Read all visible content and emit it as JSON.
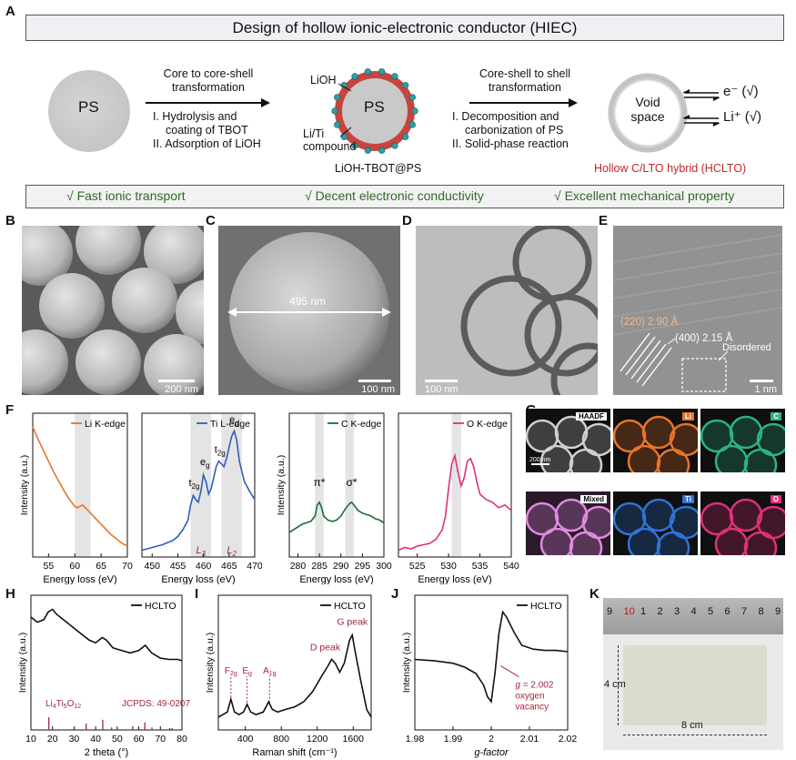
{
  "panelA": {
    "label": "A",
    "title": "Design of hollow ionic-electronic conductor (HIEC)",
    "ps_label": "PS",
    "step1_title": [
      "Core to core-shell",
      "transformation"
    ],
    "step1_items": [
      "I.  Hydrolysis and",
      "coating of TBOT",
      "II. Adsorption of LiOH"
    ],
    "lioh_label": "LiOH",
    "liti_label": [
      "Li/Ti",
      "compound"
    ],
    "core_label": "PS",
    "intermediate_name": "LiOH-TBOT@PS",
    "step2_title": [
      "Core-shell to shell",
      "transformation"
    ],
    "step2_items": [
      "I.  Decomposition and",
      "carbonization of PS",
      "II. Solid-phase reaction"
    ],
    "void_label": [
      "Void",
      "space"
    ],
    "electron_label": "e⁻ (√)",
    "li_label": "Li⁺ (√)",
    "product_name": "Hollow C/LTO hybrid (HCLTO)",
    "features": [
      "√ Fast ionic transport",
      "√ Decent electronic conductivity",
      "√ Excellent mechanical property"
    ],
    "colors": {
      "shell": "#c8443e",
      "dots": "#2aa0a8",
      "product_text": "#c0262d",
      "features_text": "#2f6b26"
    }
  },
  "panelB": {
    "label": "B",
    "scale": "200 nm"
  },
  "panelC": {
    "label": "C",
    "scale": "100 nm",
    "diameter": "495 nm"
  },
  "panelD": {
    "label": "D",
    "scale": "100 nm"
  },
  "panelE": {
    "label": "E",
    "scale": "1 nm",
    "d220": "(220)  2.90 Å",
    "d400": "(400)  2.15 Å",
    "disordered": "Disordered"
  },
  "panelF": {
    "label": "F"
  },
  "panelG": {
    "label": "G",
    "scale": "200 nm",
    "maps": [
      {
        "name": "HAADF",
        "color": "#d0d0d0"
      },
      {
        "name": "Li",
        "color": "#e8742a"
      },
      {
        "name": "C",
        "color": "#2bb583"
      },
      {
        "name": "Mixed",
        "color": "#e08ae0"
      },
      {
        "name": "Ti",
        "color": "#2f74d6"
      },
      {
        "name": "O",
        "color": "#e0307a"
      }
    ]
  },
  "panelH": {
    "label": "H"
  },
  "panelI": {
    "label": "I"
  },
  "panelJ": {
    "label": "J"
  },
  "panelK": {
    "label": "K",
    "ruler_digits": [
      "9",
      "10",
      "1",
      "2",
      "3",
      "4",
      "5",
      "6",
      "7",
      "8",
      "9"
    ],
    "height_label": "4 cm",
    "width_label": "8 cm"
  },
  "chart_data": [
    {
      "id": "F1",
      "type": "line",
      "legend": "Li K-edge",
      "color": "#e8742a",
      "xlabel": "Energy loss (eV)",
      "ylabel": "Intensity (a.u.)",
      "xlim": [
        52,
        70
      ],
      "xticks": [
        55,
        60,
        65,
        70
      ],
      "highlight": [
        60,
        63
      ],
      "x": [
        52,
        53,
        54,
        55,
        56,
        57,
        58,
        59,
        60,
        60.5,
        61,
        61.5,
        62,
        63,
        64,
        65,
        66,
        67,
        68,
        69,
        70
      ],
      "y": [
        0.95,
        0.86,
        0.78,
        0.7,
        0.62,
        0.55,
        0.48,
        0.42,
        0.37,
        0.36,
        0.37,
        0.38,
        0.36,
        0.32,
        0.28,
        0.24,
        0.2,
        0.16,
        0.13,
        0.1,
        0.08
      ]
    },
    {
      "id": "F2",
      "type": "line",
      "legend": "Ti L-edge",
      "color": "#2f5fb8",
      "xlabel": "Energy loss (eV)",
      "ylabel": "",
      "xlim": [
        448,
        470
      ],
      "xticks": [
        450,
        455,
        460,
        465,
        470
      ],
      "highlight_bands": [
        [
          457.5,
          461.5
        ],
        [
          463.5,
          467.5
        ]
      ],
      "x": [
        448,
        450,
        452,
        454,
        455,
        456,
        457,
        457.5,
        458,
        458.5,
        459,
        459.5,
        460,
        460.5,
        461,
        461.5,
        462,
        462.5,
        463,
        463.5,
        464,
        464.5,
        465,
        465.5,
        466,
        466.5,
        467,
        468,
        469,
        470
      ],
      "y": [
        0.05,
        0.07,
        0.09,
        0.12,
        0.15,
        0.2,
        0.27,
        0.38,
        0.45,
        0.42,
        0.4,
        0.48,
        0.6,
        0.55,
        0.46,
        0.5,
        0.58,
        0.66,
        0.7,
        0.68,
        0.66,
        0.72,
        0.8,
        0.88,
        0.92,
        0.85,
        0.7,
        0.55,
        0.48,
        0.42
      ],
      "peak_labels": [
        {
          "text": "t2g",
          "x": 458.2,
          "y": 0.52
        },
        {
          "text": "eg",
          "x": 460.3,
          "y": 0.67
        },
        {
          "text": "t2g",
          "x": 463.2,
          "y": 0.76
        },
        {
          "text": "eg",
          "x": 466.0,
          "y": 0.98
        }
      ],
      "edge_labels": [
        {
          "text": "L3",
          "x": 459.5
        },
        {
          "text": "L2",
          "x": 465.5
        }
      ]
    },
    {
      "id": "F3",
      "type": "line",
      "legend": "C K-edge",
      "color": "#1f6b3a",
      "xlabel": "Energy loss (eV)",
      "ylabel": "Intensity (a.u.)",
      "xlim": [
        278,
        300
      ],
      "xticks": [
        280,
        285,
        290,
        295,
        300
      ],
      "highlight_bands": [
        [
          284,
          286
        ],
        [
          291,
          293
        ]
      ],
      "x": [
        278,
        279,
        280,
        281,
        282,
        283,
        284,
        284.5,
        285,
        285.5,
        286,
        287,
        288,
        289,
        290,
        291,
        292,
        292.5,
        293,
        294,
        295,
        296,
        297,
        298,
        299,
        300
      ],
      "y": [
        0.18,
        0.2,
        0.22,
        0.24,
        0.25,
        0.26,
        0.3,
        0.38,
        0.4,
        0.36,
        0.3,
        0.27,
        0.26,
        0.27,
        0.3,
        0.35,
        0.39,
        0.4,
        0.38,
        0.34,
        0.32,
        0.31,
        0.3,
        0.28,
        0.27,
        0.25
      ],
      "peak_labels": [
        {
          "text": "π*",
          "x": 285,
          "y": 0.52
        },
        {
          "text": "σ*",
          "x": 292.5,
          "y": 0.52
        }
      ]
    },
    {
      "id": "F4",
      "type": "line",
      "legend": "O K-edge",
      "color": "#e0307a",
      "xlabel": "Energy loss (eV)",
      "ylabel": "",
      "xlim": [
        522,
        540
      ],
      "xticks": [
        525,
        530,
        535,
        540
      ],
      "highlight_bands": [
        [
          530.5,
          532
        ]
      ],
      "x": [
        522,
        523,
        524,
        525,
        526,
        527,
        528,
        529,
        529.5,
        530,
        530.5,
        531,
        531.5,
        532,
        532.5,
        533,
        533.5,
        534,
        534.5,
        535,
        536,
        537,
        538,
        539,
        540
      ],
      "y": [
        0.05,
        0.07,
        0.06,
        0.08,
        0.09,
        0.1,
        0.13,
        0.2,
        0.3,
        0.5,
        0.68,
        0.74,
        0.62,
        0.52,
        0.58,
        0.7,
        0.72,
        0.66,
        0.55,
        0.46,
        0.42,
        0.4,
        0.36,
        0.38,
        0.34
      ]
    },
    {
      "id": "H",
      "type": "line",
      "legend": "HCLTO",
      "color": "#111111",
      "xlabel": "2 theta (°)",
      "ylabel": "Intensity (a.u.)",
      "xlim": [
        10,
        80
      ],
      "xticks": [
        10,
        20,
        30,
        40,
        50,
        60,
        70,
        80
      ],
      "x": [
        10,
        13,
        16,
        18,
        20,
        22,
        25,
        28,
        31,
        34,
        37,
        40,
        43,
        45,
        48,
        52,
        56,
        60,
        63,
        66,
        70,
        74,
        78,
        80
      ],
      "y": [
        0.88,
        0.84,
        0.86,
        0.92,
        0.94,
        0.9,
        0.86,
        0.82,
        0.78,
        0.74,
        0.7,
        0.68,
        0.72,
        0.7,
        0.64,
        0.62,
        0.6,
        0.62,
        0.66,
        0.6,
        0.56,
        0.55,
        0.55,
        0.54
      ],
      "reference_label": "Li4Ti5O12",
      "reference_card": "JCPDS: 49-0207",
      "reference_peaks": [
        {
          "x": 18.3,
          "h": 1.0
        },
        {
          "x": 35.6,
          "h": 0.5
        },
        {
          "x": 43.3,
          "h": 0.8
        },
        {
          "x": 47.4,
          "h": 0.2
        },
        {
          "x": 57.2,
          "h": 0.3
        },
        {
          "x": 62.8,
          "h": 0.6
        },
        {
          "x": 66.1,
          "h": 0.2
        },
        {
          "x": 74.3,
          "h": 0.15
        },
        {
          "x": 75.4,
          "h": 0.15
        }
      ]
    },
    {
      "id": "I",
      "type": "line",
      "legend": "HCLTO",
      "color": "#111111",
      "xlabel": "Raman shift (cm⁻¹)",
      "ylabel": "Intensity (a.u.)",
      "xlim": [
        100,
        1800
      ],
      "xticks": [
        400,
        800,
        1200,
        1600
      ],
      "x": [
        100,
        200,
        240,
        280,
        330,
        380,
        420,
        460,
        520,
        600,
        660,
        700,
        760,
        850,
        950,
        1050,
        1150,
        1250,
        1320,
        1360,
        1400,
        1450,
        1500,
        1560,
        1590,
        1620,
        1680,
        1750,
        1800
      ],
      "y": [
        0.1,
        0.14,
        0.24,
        0.14,
        0.12,
        0.14,
        0.2,
        0.14,
        0.12,
        0.14,
        0.22,
        0.16,
        0.14,
        0.16,
        0.18,
        0.22,
        0.3,
        0.42,
        0.5,
        0.55,
        0.52,
        0.45,
        0.52,
        0.7,
        0.74,
        0.62,
        0.4,
        0.16,
        0.1
      ],
      "peak_labels": [
        {
          "text": "F2g",
          "x": 240
        },
        {
          "text": "Eg",
          "x": 420
        },
        {
          "text": "A1g",
          "x": 670
        },
        {
          "text": "D peak",
          "x": 1350
        },
        {
          "text": "G peak",
          "x": 1590
        }
      ]
    },
    {
      "id": "J",
      "type": "line",
      "legend": "HCLTO",
      "color": "#111111",
      "xlabel": "g-factor",
      "ylabel": "Intensity (a.u.)",
      "xlim": [
        1.98,
        2.02
      ],
      "xticks": [
        1.98,
        1.99,
        2.0,
        2.01,
        2.02
      ],
      "x": [
        1.98,
        1.985,
        1.99,
        1.993,
        1.996,
        1.998,
        1.999,
        2.0,
        2.001,
        2.002,
        2.003,
        2.004,
        2.006,
        2.008,
        2.011,
        2.014,
        2.017,
        2.02
      ],
      "y": [
        0.55,
        0.54,
        0.52,
        0.49,
        0.44,
        0.35,
        0.26,
        0.22,
        0.45,
        0.75,
        0.92,
        0.88,
        0.76,
        0.66,
        0.63,
        0.62,
        0.62,
        0.61
      ],
      "annotation": [
        "g = 2.002",
        "oxygen",
        "vacancy"
      ],
      "annotation_color": "#a3263a"
    }
  ]
}
